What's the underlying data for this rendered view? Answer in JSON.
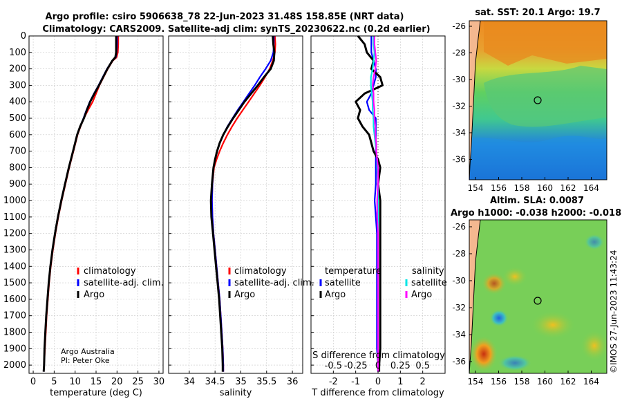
{
  "title": {
    "line1": "Argo profile: csiro 5906638_78 22-Jun-2023 31.48S 158.85E (NRT data)",
    "line2": "Climatology: CARS2009. Satellite-adj clim: synTS_20230622.nc (0.2d earlier)"
  },
  "credit": {
    "line1": "Argo Australia",
    "line2": "PI: Peter Oke"
  },
  "watermark": "©IMOS 27-Jun-2023 11:43:24",
  "depth_ticks": [
    0,
    100,
    200,
    300,
    400,
    500,
    600,
    700,
    800,
    900,
    1000,
    1100,
    1200,
    1300,
    1400,
    1500,
    1600,
    1700,
    1800,
    1900,
    2000
  ],
  "colors": {
    "climatology": "#ff0000",
    "satellite": "#0000ff",
    "argo": "#000000",
    "sat_s": "#00e5e5",
    "argo_s": "#ff00ff"
  },
  "legend_labels": {
    "climatology": "climatology",
    "satellite": "satellite-adj. clim.",
    "argo": "Argo"
  },
  "chart_data": [
    {
      "type": "line",
      "id": "temperature",
      "xlabel": "temperature (deg C)",
      "xlim": [
        -1,
        31
      ],
      "ylim": [
        0,
        2050
      ],
      "xticks": [
        0,
        5,
        10,
        15,
        20,
        25,
        30
      ],
      "depth": [
        0,
        50,
        100,
        130,
        150,
        200,
        250,
        300,
        350,
        400,
        450,
        500,
        550,
        600,
        650,
        700,
        800,
        900,
        1000,
        1100,
        1200,
        1300,
        1400,
        1500,
        1600,
        1700,
        1800,
        1900,
        2000,
        2040
      ],
      "series": [
        {
          "name": "climatology",
          "values": [
            20.3,
            20.3,
            20.2,
            19.9,
            19.0,
            17.8,
            16.8,
            15.8,
            15.0,
            14.2,
            13.1,
            12.1,
            11.3,
            10.6,
            10.1,
            9.6,
            8.6,
            7.7,
            6.8,
            6.0,
            5.3,
            4.7,
            4.2,
            3.8,
            3.5,
            3.2,
            3.0,
            2.8,
            2.6,
            2.5
          ]
        },
        {
          "name": "satellite-adj. clim.",
          "values": [
            20.0,
            20.0,
            19.9,
            19.7,
            18.9,
            17.6,
            16.6,
            15.6,
            14.5,
            13.5,
            12.7,
            12.0,
            11.2,
            10.5,
            10.0,
            9.5,
            8.5,
            7.6,
            6.7,
            5.9,
            5.2,
            4.6,
            4.1,
            3.7,
            3.4,
            3.1,
            2.9,
            2.7,
            2.6,
            2.5
          ]
        },
        {
          "name": "Argo",
          "values": [
            19.8,
            19.8,
            19.8,
            19.6,
            18.9,
            17.7,
            16.7,
            15.7,
            14.6,
            13.6,
            12.8,
            12.1,
            11.2,
            10.5,
            10.0,
            9.5,
            8.5,
            7.6,
            6.7,
            5.9,
            5.2,
            4.6,
            4.1,
            3.7,
            3.4,
            3.1,
            2.9,
            2.7,
            2.6,
            2.5
          ]
        }
      ],
      "legend": [
        "climatology",
        "satellite-adj. clim.",
        "Argo"
      ]
    },
    {
      "type": "line",
      "id": "salinity",
      "xlabel": "salinity",
      "xlim": [
        33.6,
        36.2
      ],
      "ylim": [
        0,
        2050
      ],
      "xticks": [
        34,
        34.5,
        35,
        35.5,
        36
      ],
      "tick_labels": [
        "34",
        "34.5",
        "35",
        "35.5",
        "36"
      ],
      "depth": [
        0,
        50,
        100,
        150,
        200,
        250,
        300,
        350,
        400,
        450,
        500,
        550,
        600,
        650,
        700,
        750,
        800,
        900,
        1000,
        1100,
        1200,
        1300,
        1400,
        1500,
        1600,
        1700,
        1800,
        1900,
        2000,
        2040
      ],
      "series": [
        {
          "name": "climatology",
          "values": [
            35.66,
            35.67,
            35.66,
            35.62,
            35.56,
            35.47,
            35.37,
            35.26,
            35.15,
            35.04,
            34.93,
            34.83,
            34.74,
            34.66,
            34.59,
            34.53,
            34.48,
            34.45,
            34.44,
            34.45,
            34.47,
            34.5,
            34.53,
            34.56,
            34.59,
            34.61,
            34.63,
            34.65,
            34.66,
            34.66
          ]
        },
        {
          "name": "satellite-adj. clim.",
          "values": [
            35.64,
            35.64,
            35.63,
            35.58,
            35.48,
            35.37,
            35.27,
            35.16,
            35.05,
            34.94,
            34.84,
            34.74,
            34.66,
            34.59,
            34.54,
            34.5,
            34.47,
            34.45,
            34.44,
            34.45,
            34.47,
            34.5,
            34.53,
            34.56,
            34.59,
            34.61,
            34.63,
            34.65,
            34.66,
            34.66
          ]
        },
        {
          "name": "Argo",
          "values": [
            35.62,
            35.63,
            35.65,
            35.64,
            35.58,
            35.45,
            35.33,
            35.2,
            35.07,
            34.96,
            34.85,
            34.75,
            34.66,
            34.59,
            34.54,
            34.5,
            34.47,
            34.44,
            34.42,
            34.43,
            34.46,
            34.49,
            34.52,
            34.55,
            34.58,
            34.6,
            34.62,
            34.64,
            34.65,
            34.65
          ]
        }
      ],
      "legend": [
        "climatology",
        "satellite-adj. clim.",
        "Argo"
      ]
    },
    {
      "type": "line",
      "id": "difference",
      "xlabel": "T difference from climatology",
      "s_axis_label": "S difference from climatology",
      "xlim": [
        -3,
        3
      ],
      "ylim": [
        0,
        2050
      ],
      "xticks": [
        -2,
        -1,
        0,
        1,
        2
      ],
      "s_ticks": [
        "-0.5",
        "-0.25",
        "0",
        "0.25",
        "0.5"
      ],
      "depth": [
        0,
        50,
        100,
        150,
        200,
        250,
        300,
        350,
        400,
        450,
        500,
        550,
        600,
        650,
        700,
        750,
        800,
        900,
        1000,
        1100,
        1200,
        1300,
        1400,
        1500,
        1600,
        1700,
        1800,
        1900,
        2000,
        2040
      ],
      "series": [
        {
          "name": "T satellite",
          "values": [
            -0.3,
            -0.3,
            -0.3,
            -0.2,
            -0.1,
            -0.1,
            -0.2,
            -0.3,
            -0.5,
            -0.4,
            -0.1,
            -0.1,
            -0.1,
            -0.1,
            -0.1,
            -0.1,
            -0.1,
            -0.1,
            -0.15,
            -0.1,
            -0.05,
            -0.05,
            -0.05,
            -0.05,
            -0.05,
            -0.05,
            -0.05,
            -0.05,
            0,
            0
          ]
        },
        {
          "name": "T Argo",
          "values": [
            -0.9,
            -0.6,
            -0.5,
            -0.2,
            -0.3,
            0.1,
            0.2,
            -0.6,
            -1.0,
            -0.8,
            -0.9,
            -0.7,
            -0.4,
            -0.3,
            -0.2,
            0,
            0.1,
            0,
            0.1,
            0.1,
            0.1,
            0.1,
            0.1,
            0.1,
            0.1,
            0.1,
            0.1,
            0.1,
            0.05,
            0.05
          ]
        },
        {
          "name": "S satellite",
          "values": [
            -0.05,
            -0.05,
            -0.04,
            -0.05,
            -0.06,
            -0.08,
            -0.08,
            -0.07,
            -0.06,
            -0.06,
            -0.05,
            -0.05,
            -0.04,
            -0.03,
            -0.02,
            -0.01,
            -0.01,
            0,
            0,
            0,
            0,
            0,
            0,
            0,
            0,
            0,
            0,
            0,
            0,
            0
          ]
        },
        {
          "name": "S Argo",
          "values": [
            -0.04,
            -0.04,
            -0.03,
            -0.02,
            -0.03,
            -0.05,
            -0.06,
            -0.05,
            -0.05,
            -0.04,
            -0.04,
            -0.03,
            -0.03,
            -0.02,
            -0.02,
            -0.01,
            0,
            0,
            -0.01,
            -0.01,
            0,
            0,
            0,
            0,
            0,
            0,
            0,
            0,
            0,
            0
          ]
        }
      ],
      "legend_temperature_title": "temperature",
      "legend_salinity_title": "salinity",
      "legend_satellite": "satellite",
      "legend_argo": "Argo"
    }
  ],
  "maps": [
    {
      "title": "sat. SST: 20.1 Argo: 19.7",
      "yticks": [
        "-26",
        "-28",
        "-30",
        "-32",
        "-34",
        "-36"
      ],
      "xticks": [
        "154",
        "156",
        "158",
        "160",
        "162",
        "164"
      ]
    },
    {
      "title_line1": "Altim. SLA: 0.0087",
      "title_line2": "Argo h1000: -0.038 h2000: -0.018",
      "yticks": [
        "-26",
        "-28",
        "-30",
        "-32",
        "-34",
        "-36"
      ],
      "xticks": [
        "154",
        "156",
        "158",
        "160",
        "162",
        "164"
      ]
    }
  ]
}
